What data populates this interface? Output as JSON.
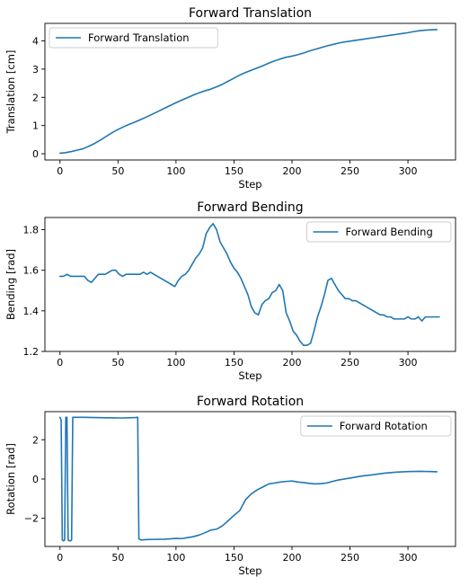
{
  "chart_data": [
    {
      "type": "line",
      "title": "Forward Translation",
      "xlabel": "Step",
      "ylabel": "Translation [cm]",
      "xlim": [
        -13,
        341
      ],
      "ylim": [
        -0.22,
        4.62
      ],
      "xticks": [
        0,
        50,
        100,
        150,
        200,
        250,
        300
      ],
      "yticks": [
        0,
        1,
        2,
        3,
        4
      ],
      "legend_position": "upper-left",
      "grid": false,
      "series": [
        {
          "name": "Forward Translation",
          "color": "#1f77b4",
          "x": [
            0,
            5,
            10,
            15,
            20,
            25,
            30,
            35,
            40,
            45,
            50,
            55,
            60,
            65,
            70,
            75,
            80,
            85,
            90,
            95,
            100,
            105,
            110,
            115,
            120,
            125,
            130,
            135,
            140,
            145,
            150,
            155,
            160,
            165,
            170,
            175,
            180,
            185,
            190,
            195,
            200,
            205,
            210,
            215,
            220,
            225,
            230,
            235,
            240,
            245,
            250,
            255,
            260,
            265,
            270,
            275,
            280,
            285,
            290,
            295,
            300,
            305,
            310,
            315,
            320,
            325
          ],
          "y": [
            0.02,
            0.04,
            0.08,
            0.13,
            0.18,
            0.27,
            0.37,
            0.49,
            0.62,
            0.75,
            0.86,
            0.96,
            1.05,
            1.13,
            1.22,
            1.31,
            1.41,
            1.51,
            1.61,
            1.71,
            1.81,
            1.9,
            1.99,
            2.08,
            2.16,
            2.23,
            2.29,
            2.37,
            2.46,
            2.57,
            2.68,
            2.79,
            2.88,
            2.96,
            3.04,
            3.12,
            3.21,
            3.29,
            3.36,
            3.42,
            3.46,
            3.51,
            3.57,
            3.64,
            3.7,
            3.76,
            3.82,
            3.87,
            3.92,
            3.96,
            3.99,
            4.02,
            4.05,
            4.08,
            4.11,
            4.14,
            4.17,
            4.2,
            4.23,
            4.26,
            4.29,
            4.33,
            4.36,
            4.38,
            4.39,
            4.4
          ]
        }
      ]
    },
    {
      "type": "line",
      "title": "Forward Bending",
      "xlabel": "Step",
      "ylabel": "Bending [rad]",
      "xlim": [
        -13,
        341
      ],
      "ylim": [
        1.2,
        1.86
      ],
      "xticks": [
        0,
        50,
        100,
        150,
        200,
        250,
        300
      ],
      "yticks": [
        1.2,
        1.4,
        1.6,
        1.8
      ],
      "legend_position": "upper-right",
      "grid": false,
      "series": [
        {
          "name": "Forward Bending",
          "color": "#1f77b4",
          "x": [
            0,
            3,
            6,
            9,
            12,
            15,
            18,
            21,
            24,
            27,
            30,
            33,
            36,
            39,
            42,
            45,
            48,
            51,
            54,
            57,
            60,
            63,
            66,
            69,
            72,
            75,
            78,
            81,
            84,
            87,
            90,
            93,
            96,
            99,
            102,
            105,
            108,
            111,
            114,
            117,
            120,
            123,
            126,
            129,
            132,
            135,
            138,
            141,
            144,
            147,
            150,
            153,
            156,
            159,
            162,
            165,
            168,
            171,
            174,
            177,
            180,
            183,
            186,
            189,
            192,
            195,
            198,
            201,
            204,
            207,
            210,
            213,
            216,
            219,
            222,
            225,
            228,
            231,
            234,
            237,
            240,
            243,
            246,
            249,
            252,
            255,
            258,
            261,
            264,
            267,
            270,
            273,
            276,
            279,
            282,
            285,
            288,
            291,
            294,
            297,
            300,
            303,
            306,
            309,
            312,
            315,
            318,
            321,
            324,
            327
          ],
          "y": [
            1.57,
            1.57,
            1.58,
            1.57,
            1.57,
            1.57,
            1.57,
            1.57,
            1.55,
            1.54,
            1.56,
            1.58,
            1.58,
            1.58,
            1.59,
            1.6,
            1.6,
            1.58,
            1.57,
            1.58,
            1.58,
            1.58,
            1.58,
            1.58,
            1.59,
            1.58,
            1.59,
            1.58,
            1.57,
            1.56,
            1.55,
            1.54,
            1.53,
            1.52,
            1.55,
            1.57,
            1.58,
            1.6,
            1.63,
            1.66,
            1.68,
            1.71,
            1.78,
            1.81,
            1.83,
            1.8,
            1.74,
            1.71,
            1.68,
            1.64,
            1.61,
            1.59,
            1.56,
            1.52,
            1.48,
            1.42,
            1.39,
            1.38,
            1.43,
            1.45,
            1.46,
            1.49,
            1.5,
            1.53,
            1.5,
            1.39,
            1.35,
            1.3,
            1.28,
            1.25,
            1.23,
            1.23,
            1.24,
            1.3,
            1.37,
            1.42,
            1.48,
            1.55,
            1.56,
            1.53,
            1.5,
            1.48,
            1.46,
            1.46,
            1.45,
            1.45,
            1.44,
            1.43,
            1.42,
            1.41,
            1.4,
            1.39,
            1.38,
            1.38,
            1.37,
            1.37,
            1.36,
            1.36,
            1.36,
            1.36,
            1.37,
            1.36,
            1.36,
            1.37,
            1.35,
            1.37,
            1.37,
            1.37,
            1.37,
            1.37
          ]
        }
      ]
    },
    {
      "type": "line",
      "title": "Forward Rotation",
      "xlabel": "Step",
      "ylabel": "Rotation [rad]",
      "xlim": [
        -13,
        341
      ],
      "ylim": [
        -3.43,
        3.43
      ],
      "xticks": [
        0,
        50,
        100,
        150,
        200,
        250,
        300
      ],
      "yticks": [
        -2,
        0,
        2
      ],
      "legend_position": "upper-right",
      "grid": false,
      "series": [
        {
          "name": "Forward Rotation",
          "color": "#1f77b4",
          "x": [
            0,
            1,
            2,
            3,
            4,
            5,
            6,
            7,
            8,
            9,
            10,
            11,
            12,
            13,
            20,
            30,
            40,
            50,
            55,
            60,
            65,
            67,
            68,
            70,
            75,
            80,
            90,
            100,
            105,
            110,
            115,
            120,
            125,
            130,
            135,
            140,
            145,
            150,
            155,
            160,
            165,
            170,
            175,
            180,
            185,
            190,
            195,
            200,
            205,
            210,
            215,
            220,
            225,
            230,
            235,
            240,
            250,
            260,
            270,
            280,
            290,
            300,
            310,
            320,
            325
          ],
          "y": [
            3.14,
            3.0,
            -3.1,
            -3.14,
            -3.1,
            3.14,
            3.14,
            -3.1,
            -3.14,
            -3.14,
            -3.1,
            3.14,
            3.14,
            3.14,
            3.14,
            3.13,
            3.12,
            3.11,
            3.11,
            3.12,
            3.13,
            3.14,
            -3.05,
            -3.1,
            -3.08,
            -3.07,
            -3.06,
            -3.02,
            -3.03,
            -2.98,
            -2.93,
            -2.85,
            -2.73,
            -2.6,
            -2.55,
            -2.38,
            -2.12,
            -1.85,
            -1.6,
            -1.05,
            -0.75,
            -0.55,
            -0.4,
            -0.25,
            -0.2,
            -0.15,
            -0.12,
            -0.1,
            -0.15,
            -0.18,
            -0.22,
            -0.25,
            -0.23,
            -0.2,
            -0.12,
            -0.05,
            0.05,
            0.15,
            0.22,
            0.3,
            0.35,
            0.38,
            0.39,
            0.38,
            0.37
          ]
        }
      ]
    }
  ]
}
